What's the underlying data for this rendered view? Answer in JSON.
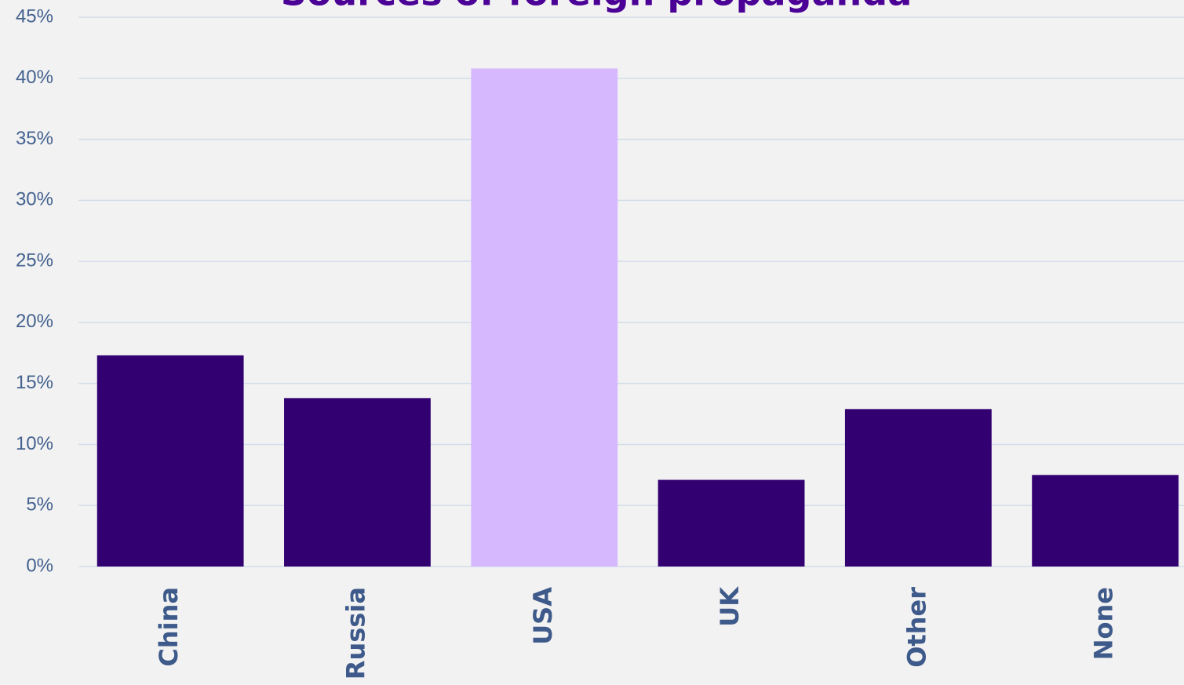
{
  "chart_data": {
    "type": "bar",
    "title": "Sources of foreign propaganda",
    "categories": [
      "China",
      "Russia",
      "USA",
      "UK",
      "Other",
      "None"
    ],
    "values": [
      17.3,
      13.8,
      40.8,
      7.1,
      12.9,
      7.5
    ],
    "colors": [
      "#330072",
      "#330072",
      "#d6b8ff",
      "#330072",
      "#330072",
      "#330072"
    ],
    "ylim": [
      0,
      45
    ],
    "yticks": [
      {
        "value": 0,
        "label": "0%"
      },
      {
        "value": 5,
        "label": "5%"
      },
      {
        "value": 10,
        "label": "10%"
      },
      {
        "value": 15,
        "label": "15%"
      },
      {
        "value": 20,
        "label": "20%"
      },
      {
        "value": 25,
        "label": "25%"
      },
      {
        "value": 30,
        "label": "30%"
      },
      {
        "value": 35,
        "label": "35%"
      },
      {
        "value": 40,
        "label": "40%"
      },
      {
        "value": 45,
        "label": "45%"
      }
    ],
    "grid": true
  }
}
